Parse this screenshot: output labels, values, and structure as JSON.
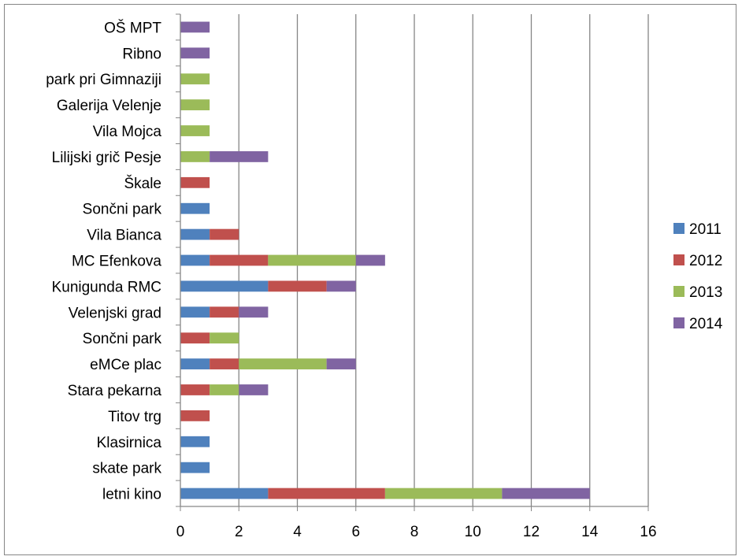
{
  "chart_data": {
    "type": "bar",
    "orientation": "horizontal",
    "stacked": true,
    "categories": [
      "letni kino",
      "skate park",
      "Klasirnica",
      "Titov trg",
      "Stara pekarna",
      "eMCe plac",
      "Sončni park",
      "Velenjski grad",
      "Kunigunda RMC",
      "MC Efenkova",
      "Vila Bianca",
      "Sončni park",
      "Škale",
      "Lilijski grič Pesje",
      "Vila Mojca",
      "Galerija Velenje",
      "park pri Gimnaziji",
      "Ribno",
      "OŠ MPT"
    ],
    "series": [
      {
        "name": "2011",
        "color": "#4F81BD",
        "values": [
          3,
          1,
          1,
          0,
          0,
          1,
          0,
          1,
          3,
          1,
          1,
          1,
          0,
          0,
          0,
          0,
          0,
          0,
          0
        ]
      },
      {
        "name": "2012",
        "color": "#C0504D",
        "values": [
          4,
          0,
          0,
          1,
          1,
          1,
          1,
          1,
          2,
          2,
          1,
          0,
          1,
          0,
          0,
          0,
          0,
          0,
          0
        ]
      },
      {
        "name": "2013",
        "color": "#9BBB59",
        "values": [
          4,
          0,
          0,
          0,
          1,
          3,
          1,
          0,
          0,
          3,
          0,
          0,
          0,
          1,
          1,
          1,
          1,
          0,
          0
        ]
      },
      {
        "name": "2014",
        "color": "#8064A2",
        "values": [
          3,
          0,
          0,
          0,
          1,
          1,
          0,
          1,
          1,
          1,
          0,
          0,
          0,
          2,
          0,
          0,
          0,
          1,
          1
        ]
      }
    ],
    "xlim": [
      0,
      16
    ],
    "x_ticks": [
      "0",
      "2",
      "4",
      "6",
      "8",
      "10",
      "12",
      "14",
      "16"
    ],
    "grid": "vertical major gridlines",
    "legend_position": "right",
    "title": "",
    "xlabel": "",
    "ylabel": ""
  }
}
